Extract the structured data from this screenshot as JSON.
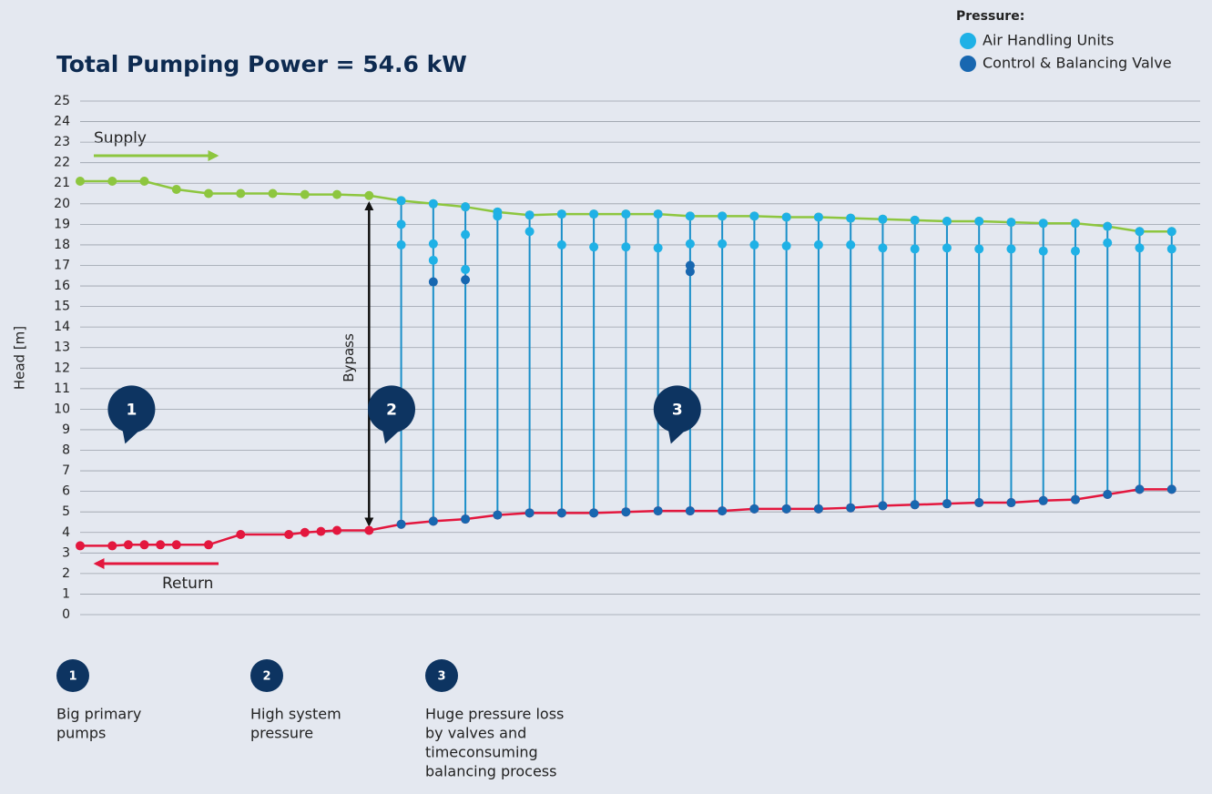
{
  "chart_data": {
    "type": "line",
    "title": "Total Pumping Power = 54.6 kW",
    "y_label": "Head [m]",
    "ylim": [
      0,
      25
    ],
    "yticks": [
      0,
      1,
      2,
      3,
      4,
      5,
      6,
      7,
      8,
      9,
      10,
      11,
      12,
      13,
      14,
      15,
      16,
      17,
      18,
      19,
      20,
      21,
      22,
      23,
      24,
      25
    ],
    "xlim": [
      0,
      35
    ],
    "grid": true,
    "legend": {
      "title": "Pressure:",
      "position": "top-right"
    },
    "series": [
      {
        "name": "Supply",
        "color": "#8dc63f",
        "x": [
          0,
          1,
          2,
          3,
          4,
          5,
          6,
          7,
          8,
          9,
          10,
          11,
          12,
          13,
          14,
          15,
          16,
          17,
          18,
          19,
          20,
          21,
          22,
          23,
          24,
          25,
          26,
          27,
          28,
          29,
          30,
          31,
          32,
          33,
          34
        ],
        "values": [
          21.1,
          21.1,
          21.1,
          20.7,
          20.5,
          20.5,
          20.5,
          20.45,
          20.45,
          20.4,
          20.15,
          20.0,
          19.85,
          19.6,
          19.45,
          19.5,
          19.5,
          19.5,
          19.5,
          19.4,
          19.4,
          19.4,
          19.35,
          19.35,
          19.3,
          19.25,
          19.2,
          19.15,
          19.15,
          19.1,
          19.05,
          19.05,
          18.9,
          18.65,
          18.65
        ]
      },
      {
        "name": "Return",
        "color": "#e3173e",
        "x": [
          0,
          1,
          1.5,
          2,
          2.5,
          3,
          4,
          5,
          6.5,
          7,
          7.5,
          8,
          9,
          10,
          11,
          12,
          13,
          14,
          15,
          16,
          17,
          18,
          19,
          20,
          21,
          22,
          23,
          24,
          25,
          26,
          27,
          28,
          29,
          30,
          31,
          32,
          33,
          34
        ],
        "values": [
          3.35,
          3.35,
          3.4,
          3.4,
          3.4,
          3.4,
          3.4,
          3.9,
          3.9,
          4.0,
          4.05,
          4.1,
          4.1,
          4.4,
          4.55,
          4.65,
          4.85,
          4.95,
          4.95,
          4.95,
          5.0,
          5.05,
          5.05,
          5.05,
          5.15,
          5.15,
          5.15,
          5.2,
          5.3,
          5.35,
          5.4,
          5.45,
          5.45,
          5.55,
          5.6,
          5.85,
          6.1,
          6.1
        ]
      }
    ],
    "points": [
      {
        "name": "Air Handling Units",
        "color": "#1fb1e6",
        "x": [
          10,
          11,
          12,
          13,
          14,
          15,
          16,
          17,
          18,
          19,
          20,
          21,
          22,
          23,
          24,
          25,
          26,
          27,
          28,
          29,
          30,
          31,
          32,
          33,
          34,
          10,
          10,
          11,
          11,
          12,
          12,
          13,
          14,
          15,
          16,
          17,
          18,
          19,
          20,
          21,
          22,
          23,
          24,
          25,
          26,
          27,
          28,
          29,
          30,
          31,
          32,
          33,
          34
        ],
        "values": [
          20.15,
          20.0,
          19.85,
          19.6,
          19.45,
          19.5,
          19.5,
          19.5,
          19.5,
          19.4,
          19.4,
          19.4,
          19.35,
          19.35,
          19.3,
          19.25,
          19.2,
          19.15,
          19.15,
          19.1,
          19.05,
          19.05,
          18.9,
          18.65,
          18.65,
          19.0,
          18.0,
          18.05,
          17.25,
          18.5,
          16.8,
          19.4,
          18.65,
          18.0,
          17.9,
          17.9,
          17.85,
          18.05,
          18.05,
          18.0,
          17.95,
          18.0,
          18.0,
          17.85,
          17.8,
          17.85,
          17.8,
          17.8,
          17.7,
          17.7,
          18.1,
          17.85,
          17.8
        ]
      },
      {
        "name": "Control & Balancing Valve",
        "color": "#1867b0",
        "x": [
          11,
          12,
          19,
          19,
          10,
          11,
          12,
          13,
          14,
          15,
          16,
          17,
          18,
          19,
          20,
          21,
          22,
          23,
          24,
          25,
          26,
          27,
          28,
          29,
          30,
          31,
          32,
          33,
          34
        ],
        "values": [
          16.2,
          16.3,
          17.0,
          16.7,
          4.4,
          4.55,
          4.65,
          4.85,
          4.95,
          4.95,
          4.95,
          5.0,
          5.05,
          5.05,
          5.05,
          5.15,
          5.15,
          5.15,
          5.2,
          5.3,
          5.35,
          5.4,
          5.45,
          5.45,
          5.55,
          5.6,
          5.85,
          6.1,
          6.1
        ]
      }
    ],
    "bypass": {
      "label": "Bypass",
      "x": 9,
      "from": 4.1,
      "to": 20.3
    },
    "callouts": [
      {
        "label": "1",
        "x": 1.6,
        "y": 10
      },
      {
        "label": "2",
        "x": 9.7,
        "y": 10
      },
      {
        "label": "3",
        "x": 18.6,
        "y": 10
      }
    ],
    "notes": [
      {
        "number": "1",
        "lines": [
          "Big primary",
          "pumps"
        ]
      },
      {
        "number": "2",
        "lines": [
          "High system",
          "pressure"
        ]
      },
      {
        "number": "3",
        "lines": [
          "Huge pressure loss",
          "by valves and",
          "timeconsuming",
          "balancing process"
        ]
      }
    ]
  }
}
